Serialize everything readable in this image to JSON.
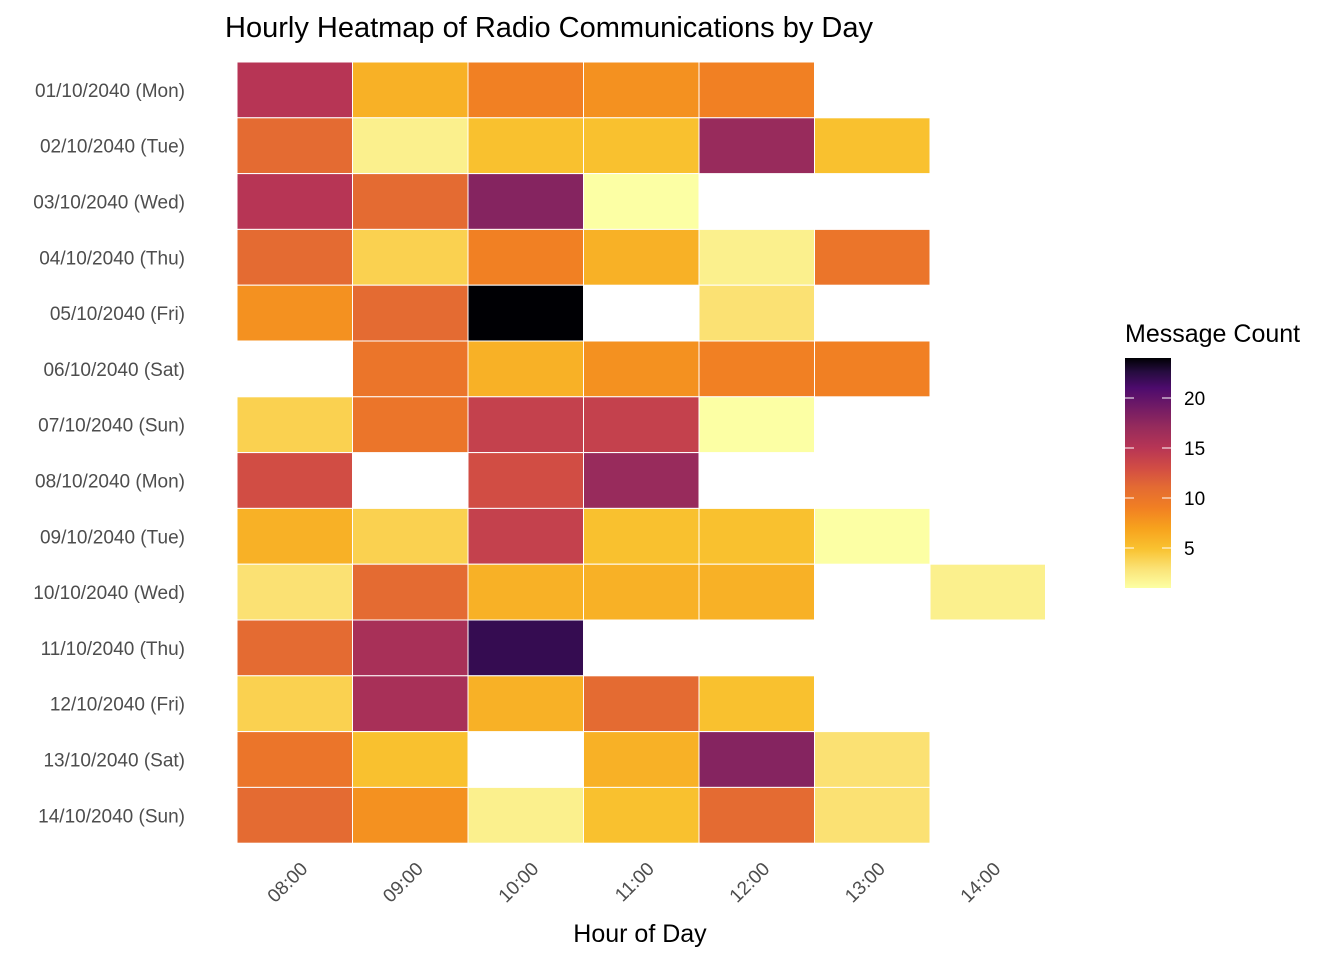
{
  "chart_data": {
    "type": "heatmap",
    "title": "Hourly Heatmap of Radio Communications by Day",
    "xlabel": "Hour of Day",
    "ylabel": "",
    "x_categories": [
      "08:00",
      "09:00",
      "10:00",
      "11:00",
      "12:00",
      "13:00",
      "14:00"
    ],
    "y_categories": [
      "01/10/2040 (Mon)",
      "02/10/2040 (Tue)",
      "03/10/2040 (Wed)",
      "04/10/2040 (Thu)",
      "05/10/2040 (Fri)",
      "06/10/2040 (Sat)",
      "07/10/2040 (Sun)",
      "08/10/2040 (Mon)",
      "09/10/2040 (Tue)",
      "10/10/2040 (Wed)",
      "11/10/2040 (Thu)",
      "12/10/2040 (Fri)",
      "13/10/2040 (Sat)",
      "14/10/2040 (Sun)"
    ],
    "values": [
      [
        15,
        6,
        9,
        8,
        9,
        null,
        null
      ],
      [
        11,
        2,
        5,
        5,
        17,
        5,
        null
      ],
      [
        15,
        11,
        18,
        1,
        null,
        null,
        null
      ],
      [
        11,
        4,
        9,
        6,
        2,
        10,
        null
      ],
      [
        8,
        11,
        24,
        null,
        3,
        null,
        null
      ],
      [
        null,
        10,
        6,
        8,
        9,
        9,
        null
      ],
      [
        4,
        10,
        14,
        14,
        1,
        null,
        null
      ],
      [
        13,
        null,
        13,
        17,
        null,
        null,
        null
      ],
      [
        6,
        4,
        14,
        5,
        5,
        1,
        null
      ],
      [
        3,
        11,
        6,
        6,
        6,
        null,
        2
      ],
      [
        11,
        16,
        22,
        null,
        null,
        null,
        null
      ],
      [
        4,
        16,
        6,
        11,
        5,
        null,
        null
      ],
      [
        10,
        5,
        null,
        6,
        18,
        3,
        null
      ],
      [
        11,
        8,
        2,
        5,
        11,
        3,
        null
      ]
    ],
    "legend": {
      "title": "Message Count",
      "placement": "right",
      "min": 1,
      "max": 24,
      "ticks": [
        5,
        10,
        15,
        20
      ]
    },
    "colorscale": "inferno (reversed)",
    "grid": false
  }
}
